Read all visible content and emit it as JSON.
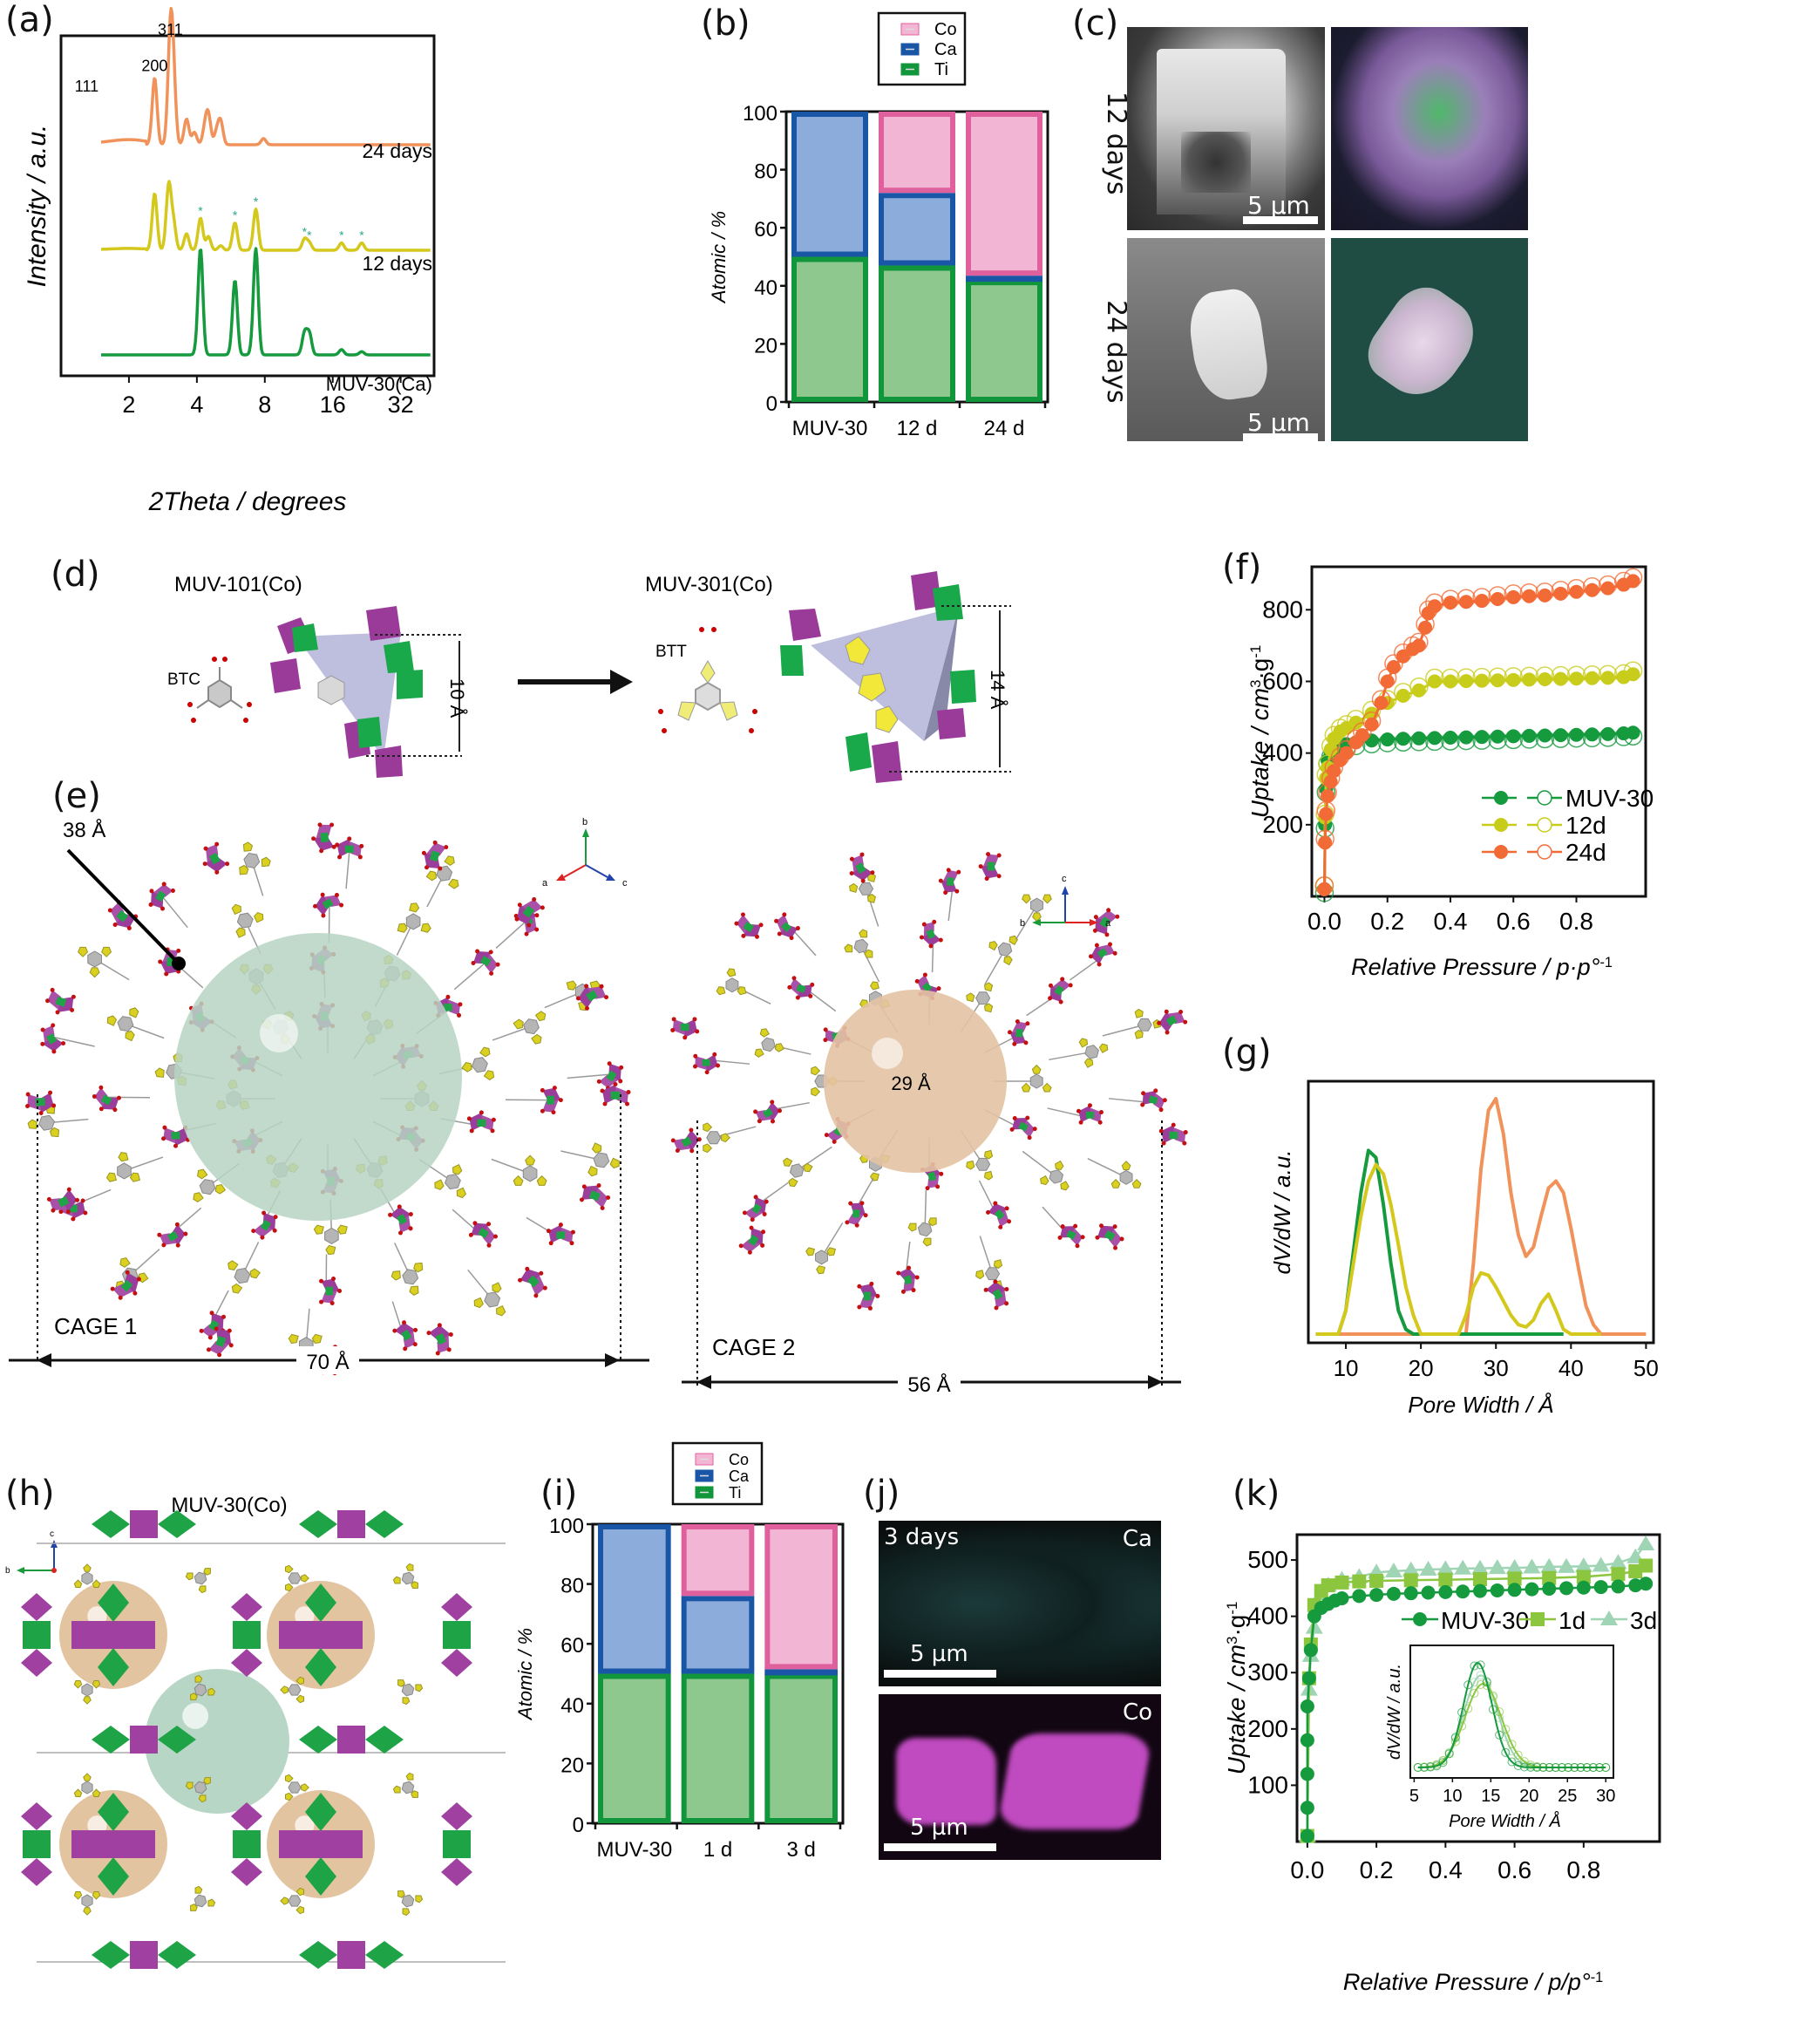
{
  "panel_labels": {
    "a": "(a)",
    "b": "(b)",
    "c": "(c)",
    "d": "(d)",
    "e": "(e)",
    "f": "(f)",
    "g": "(g)",
    "h": "(h)",
    "i": "(i)",
    "j": "(j)",
    "k": "(k)"
  },
  "colors": {
    "orange": "#f0925a",
    "yellow": "#d4c81c",
    "green": "#159a3e",
    "co_fill": "#f2b5d4",
    "co_edge": "#e0609e",
    "ca_fill": "#8cacdc",
    "ca_edge": "#1a56a6",
    "ti_fill": "#8fc88f",
    "ti_edge": "#12963c",
    "k_1d": "#8cc63f",
    "k_3d": "#9fd4b4",
    "f_24d": "#f26b36",
    "f_12d": "#c8cc1a"
  },
  "chart_data": [
    {
      "id": "a",
      "type": "line",
      "title": "",
      "xlabel": "2Theta / degrees",
      "ylabel": "Intensity / a.u.",
      "xscale": "log2",
      "xlim": [
        1.0,
        45
      ],
      "xticks": [
        "2",
        "4",
        "8",
        "16",
        "32"
      ],
      "peak_labels": [
        {
          "label": "111",
          "x": 1.3
        },
        {
          "label": "200",
          "x": 2.6
        },
        {
          "label": "311",
          "x": 3.05
        }
      ],
      "series": [
        {
          "name": "24 days",
          "peaks": [
            [
              1.3,
              0.45
            ],
            [
              2.6,
              0.65
            ],
            [
              3.05,
              1.0
            ],
            [
              3.15,
              0.6
            ],
            [
              3.6,
              0.25
            ],
            [
              3.9,
              0.12
            ],
            [
              4.35,
              0.15
            ],
            [
              4.5,
              0.27
            ],
            [
              4.9,
              0.12
            ],
            [
              5.1,
              0.22
            ],
            [
              7.9,
              0.06
            ]
          ]
        },
        {
          "name": "12 days",
          "peaks": [
            [
              1.3,
              0.75
            ],
            [
              2.6,
              0.62
            ],
            [
              3.0,
              0.7
            ],
            [
              3.15,
              0.3
            ],
            [
              3.6,
              0.18
            ],
            [
              4.15,
              0.35
            ],
            [
              4.5,
              0.15
            ],
            [
              5.1,
              0.05
            ],
            [
              5.9,
              0.3
            ],
            [
              7.3,
              0.45
            ],
            [
              12.0,
              0.12
            ],
            [
              12.6,
              0.08
            ],
            [
              17.5,
              0.08
            ],
            [
              21.5,
              0.08
            ]
          ],
          "marked_peaks": [
            4.15,
            5.9,
            7.3,
            12.0,
            12.6,
            17.5,
            21.5
          ]
        },
        {
          "name": "MUV-30(Ca)",
          "peaks": [
            [
              4.15,
              1.0
            ],
            [
              5.9,
              0.7
            ],
            [
              7.3,
              1.0
            ],
            [
              12.0,
              0.2
            ],
            [
              12.6,
              0.2
            ],
            [
              17.5,
              0.05
            ],
            [
              21.5,
              0.03
            ]
          ]
        }
      ]
    },
    {
      "id": "b",
      "type": "bar",
      "stacked": true,
      "xlabel": "",
      "ylabel": "Atomic / %",
      "ylim": [
        0,
        100
      ],
      "yticks": [
        "0",
        "20",
        "40",
        "60",
        "80",
        "100"
      ],
      "categories": [
        "MUV-30",
        "12 d",
        "24 d"
      ],
      "legend": [
        "Co",
        "Ca",
        "Ti"
      ],
      "legend_position": "top",
      "series": [
        {
          "name": "Ti",
          "values": [
            50,
            47,
            42
          ]
        },
        {
          "name": "Ca",
          "values": [
            50,
            25,
            1.5
          ]
        },
        {
          "name": "Co",
          "values": [
            0,
            28,
            56.5
          ]
        }
      ]
    },
    {
      "id": "f",
      "type": "scatter",
      "xlabel": "Relative Pressure / p·p°",
      "xlabel_sup": "-1",
      "ylabel": "Uptake / cm",
      "ylabel_sup1": "3",
      "ylabel_mid": "·g",
      "ylabel_sup2": "-1",
      "xlim": [
        -0.04,
        1.02
      ],
      "ylim": [
        0,
        920
      ],
      "xticks": [
        "0.0",
        "0.2",
        "0.4",
        "0.6",
        "0.8"
      ],
      "yticks": [
        "200",
        "400",
        "600",
        "800"
      ],
      "legend_position": "bottom-right",
      "series": [
        {
          "name": "MUV-30",
          "x": [
            0,
            0.002,
            0.005,
            0.01,
            0.02,
            0.03,
            0.05,
            0.07,
            0.1,
            0.15,
            0.2,
            0.25,
            0.3,
            0.35,
            0.4,
            0.45,
            0.5,
            0.55,
            0.6,
            0.65,
            0.7,
            0.75,
            0.8,
            0.85,
            0.9,
            0.95,
            0.98
          ],
          "y": [
            20,
            200,
            300,
            380,
            400,
            410,
            420,
            425,
            430,
            435,
            438,
            440,
            441,
            442,
            443,
            444,
            445,
            446,
            447,
            448,
            449,
            450,
            451,
            452,
            453,
            455,
            457
          ]
        },
        {
          "name": "12d",
          "x": [
            0,
            0.002,
            0.005,
            0.01,
            0.02,
            0.03,
            0.05,
            0.07,
            0.1,
            0.15,
            0.2,
            0.25,
            0.3,
            0.35,
            0.4,
            0.45,
            0.5,
            0.55,
            0.6,
            0.65,
            0.7,
            0.75,
            0.8,
            0.85,
            0.9,
            0.95,
            0.98
          ],
          "y": [
            20,
            220,
            330,
            360,
            410,
            440,
            460,
            470,
            485,
            510,
            540,
            560,
            575,
            600,
            600,
            601,
            602,
            603,
            604,
            605,
            606,
            607,
            608,
            609,
            610,
            612,
            620
          ]
        },
        {
          "name": "24d",
          "x": [
            0,
            0.002,
            0.005,
            0.01,
            0.02,
            0.03,
            0.05,
            0.07,
            0.1,
            0.12,
            0.15,
            0.18,
            0.2,
            0.22,
            0.25,
            0.28,
            0.3,
            0.32,
            0.33,
            0.35,
            0.4,
            0.45,
            0.5,
            0.55,
            0.6,
            0.65,
            0.7,
            0.75,
            0.8,
            0.85,
            0.9,
            0.95,
            0.98
          ],
          "y": [
            20,
            150,
            230,
            280,
            320,
            350,
            380,
            400,
            430,
            450,
            480,
            540,
            600,
            640,
            670,
            690,
            700,
            750,
            790,
            810,
            820,
            822,
            825,
            830,
            835,
            838,
            840,
            845,
            850,
            855,
            860,
            870,
            880
          ]
        }
      ]
    },
    {
      "id": "g",
      "type": "line",
      "xlabel": "Pore Width / Å",
      "ylabel": "dV/dW / a.u.",
      "xlim": [
        5,
        51
      ],
      "ylim": [
        0,
        1.05
      ],
      "xticks": [
        "10",
        "20",
        "30",
        "40",
        "50"
      ],
      "series": [
        {
          "name": "MUV-30",
          "x": [
            6,
            9,
            10,
            11,
            12,
            13,
            14,
            15,
            16,
            17,
            18,
            19,
            26,
            39
          ],
          "y": [
            0,
            0,
            0.1,
            0.35,
            0.6,
            0.78,
            0.75,
            0.55,
            0.3,
            0.1,
            0.02,
            0,
            0,
            0
          ]
        },
        {
          "name": "12d",
          "x": [
            6,
            9,
            10,
            11,
            12,
            13,
            14,
            15,
            16,
            17,
            18,
            19,
            20,
            25,
            26,
            27,
            28,
            29,
            30,
            31,
            32,
            33,
            34,
            35,
            36,
            37,
            38,
            39,
            40,
            44
          ],
          "y": [
            0,
            0,
            0.1,
            0.3,
            0.5,
            0.65,
            0.72,
            0.68,
            0.55,
            0.38,
            0.2,
            0.08,
            0,
            0,
            0.08,
            0.2,
            0.26,
            0.25,
            0.2,
            0.14,
            0.08,
            0.04,
            0.03,
            0.06,
            0.13,
            0.17,
            0.1,
            0.02,
            0,
            0
          ]
        },
        {
          "name": "24d",
          "x": [
            6,
            26,
            27,
            28,
            29,
            30,
            31,
            32,
            33,
            34,
            35,
            36,
            37,
            38,
            39,
            40,
            41,
            42,
            43,
            44,
            50
          ],
          "y": [
            0,
            0,
            0.3,
            0.7,
            0.95,
            1.0,
            0.85,
            0.6,
            0.42,
            0.33,
            0.37,
            0.5,
            0.62,
            0.65,
            0.6,
            0.45,
            0.28,
            0.12,
            0.04,
            0,
            0
          ]
        }
      ]
    },
    {
      "id": "i",
      "type": "bar",
      "stacked": true,
      "xlabel": "",
      "ylabel": "Atomic / %",
      "ylim": [
        0,
        100
      ],
      "yticks": [
        "0",
        "20",
        "40",
        "60",
        "80",
        "100"
      ],
      "categories": [
        "MUV-30",
        "1 d",
        "3 d"
      ],
      "legend": [
        "Co",
        "Ca",
        "Ti"
      ],
      "legend_position": "top",
      "series": [
        {
          "name": "Ti",
          "values": [
            50,
            50,
            50
          ]
        },
        {
          "name": "Ca",
          "values": [
            50,
            26,
            1.5
          ]
        },
        {
          "name": "Co",
          "values": [
            0,
            24,
            48.5
          ]
        }
      ]
    },
    {
      "id": "k",
      "type": "scatter",
      "xlabel": "Relative Pressure / p/p°",
      "xlabel_sup": "-1",
      "ylabel": "Uptake / cm",
      "ylabel_sup1": "3",
      "ylabel_mid": "·g",
      "ylabel_sup2": "-1",
      "xlim": [
        -0.03,
        1.02
      ],
      "ylim": [
        0,
        545
      ],
      "xticks": [
        "0.0",
        "0.2",
        "0.4",
        "0.6",
        "0.8"
      ],
      "yticks": [
        "100",
        "200",
        "300",
        "400",
        "500"
      ],
      "legend_position": "top-right",
      "series": [
        {
          "name": "MUV-30",
          "marker": "circle",
          "x": [
            0,
            0,
            0,
            0,
            0,
            0.005,
            0.01,
            0.02,
            0.04,
            0.06,
            0.08,
            0.1,
            0.15,
            0.2,
            0.25,
            0.3,
            0.35,
            0.4,
            0.45,
            0.5,
            0.55,
            0.6,
            0.65,
            0.7,
            0.75,
            0.8,
            0.85,
            0.9,
            0.95,
            0.98
          ],
          "y": [
            10,
            60,
            120,
            180,
            240,
            290,
            340,
            400,
            415,
            422,
            428,
            432,
            436,
            438,
            440,
            441,
            442,
            443,
            444,
            445,
            446,
            447,
            448,
            449,
            450,
            451,
            452,
            453,
            455,
            458
          ]
        },
        {
          "name": "1d",
          "marker": "square",
          "x": [
            0,
            0.005,
            0.01,
            0.02,
            0.04,
            0.06,
            0.1,
            0.15,
            0.2,
            0.3,
            0.4,
            0.5,
            0.6,
            0.7,
            0.8,
            0.9,
            0.95,
            0.98
          ],
          "y": [
            10,
            290,
            350,
            420,
            445,
            455,
            460,
            462,
            463,
            464,
            465,
            466,
            467,
            468,
            470,
            475,
            480,
            490
          ]
        },
        {
          "name": "3d",
          "marker": "triangle",
          "x": [
            0,
            0.005,
            0.01,
            0.02,
            0.04,
            0.06,
            0.1,
            0.15,
            0.2,
            0.25,
            0.3,
            0.35,
            0.4,
            0.45,
            0.5,
            0.55,
            0.6,
            0.65,
            0.7,
            0.75,
            0.8,
            0.85,
            0.9,
            0.95,
            0.98
          ],
          "y": [
            10,
            270,
            330,
            380,
            440,
            455,
            465,
            470,
            478,
            480,
            482,
            483,
            484,
            485,
            485,
            486,
            486,
            487,
            488,
            488,
            489,
            490,
            495,
            505,
            528
          ]
        }
      ],
      "inset": {
        "type": "line",
        "xlabel": "Pore Width / Å",
        "ylabel": "dV/dW / a.u.",
        "xlim": [
          4.5,
          31
        ],
        "ylim": [
          0,
          1.05
        ],
        "xticks": [
          "5",
          "10",
          "15",
          "20",
          "25",
          "30"
        ],
        "series": [
          {
            "name": "MUV-30",
            "center": 13.3,
            "width": 2.2,
            "peak": 1.0
          },
          {
            "name": "1d",
            "center": 14.0,
            "width": 2.8,
            "peak": 0.8
          },
          {
            "name": "3d",
            "center": 13.7,
            "width": 2.6,
            "peak": 0.88
          }
        ]
      }
    }
  ],
  "panel_a": {
    "series_labels": [
      "24 days",
      "12 days",
      "MUV-30(Ca)"
    ]
  },
  "panel_c": {
    "row_labels": [
      "12 days",
      "24 days"
    ],
    "scale_bar": "5 µm"
  },
  "panel_d": {
    "left_title": "MUV-101(Co)",
    "right_title": "MUV-301(Co)",
    "left_linker": "BTC",
    "right_linker": "BTT",
    "left_dim": "10 Å",
    "right_dim": "14 Å"
  },
  "panel_e": {
    "cage1_label": "CAGE 1",
    "cage1_width": "70 Å",
    "cage1_sphere": "38 Å",
    "cage2_label": "CAGE 2",
    "cage2_width": "56 Å",
    "cage2_sphere": "29 Å",
    "axes1": {
      "a": "a",
      "b": "b",
      "c": "c"
    },
    "axes2": {
      "a": "a",
      "b": "b",
      "c": "c"
    }
  },
  "panel_h": {
    "title": "MUV-30(Co)",
    "axis_b": "b",
    "axis_c": "c"
  },
  "panel_j": {
    "time": "3 days",
    "top_element": "Ca",
    "bottom_element": "Co",
    "scale_bar": "5 µm"
  },
  "legend_f": [
    "MUV-30",
    "12d",
    "24d"
  ],
  "legend_k": [
    "MUV-30",
    "1d",
    "3d"
  ]
}
